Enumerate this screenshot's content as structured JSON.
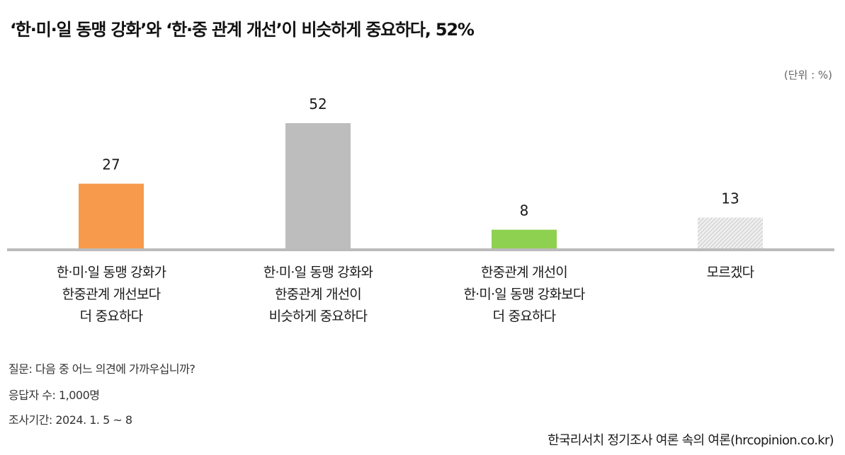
{
  "title": "‘한·미·일 동맹 강화’와 ‘한·중 관계 개선’이 비슷하게 중요하다, 52%",
  "unit_label": "(단위 : %)",
  "chart_data": {
    "type": "bar",
    "title": "‘한·미·일 동맹 강화’와 ‘한·중 관계 개선’이 비슷하게 중요하다, 52%",
    "xlabel": "",
    "ylabel": "",
    "unit": "%",
    "ylim": [
      0,
      52
    ],
    "grid": false,
    "categories": [
      [
        "한·미·일 동맹 강화가",
        "한중관계 개선보다",
        "더 중요하다"
      ],
      [
        "한·미·일 동맹 강화와",
        "한중관계 개선이",
        "비슷하게 중요하다"
      ],
      [
        "한중관계 개선이",
        "한·미·일 동맹 강화보다",
        "더 중요하다"
      ],
      [
        "모르겠다"
      ]
    ],
    "values": [
      27,
      52,
      8,
      13
    ],
    "colors": [
      "#f79a4b",
      "#bdbdbd",
      "#8ed150",
      "hatched-light-gray"
    ]
  },
  "footnotes": {
    "question": "질문: 다음 중 어느 의견에 가까우십니까?",
    "respondents": "응답자 수: 1,000명",
    "period": "조사기간: 2024. 1. 5 ~ 8"
  },
  "source": "한국리서치 정기조사 여론 속의 여론(hrcopinion.co.kr)"
}
